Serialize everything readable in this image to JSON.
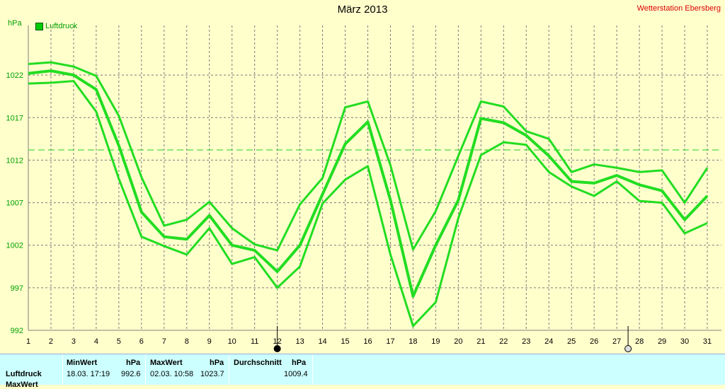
{
  "header": {
    "title": "März 2013",
    "station": "Wetterstation Ebersberg",
    "unit": "hPa",
    "legend_label": "Luftdruck"
  },
  "chart_data": {
    "type": "line",
    "title": "März 2013",
    "ylabel": "hPa",
    "xlabel": "",
    "ylim": [
      992,
      1027
    ],
    "yticks": [
      992,
      997,
      1002,
      1007,
      1012,
      1017,
      1022
    ],
    "xlim": [
      1,
      31
    ],
    "x": [
      1,
      2,
      3,
      4,
      5,
      6,
      7,
      8,
      9,
      10,
      11,
      12,
      13,
      14,
      15,
      16,
      17,
      18,
      19,
      20,
      21,
      22,
      23,
      24,
      25,
      26,
      27,
      28,
      29,
      30,
      31
    ],
    "grid": true,
    "legend_position": "top-left",
    "average_line": 1013.2,
    "line_color": "#22dd22",
    "series": [
      {
        "name": "Luftdruck",
        "role": "max",
        "values": [
          1023.3,
          1023.5,
          1023.0,
          1021.9,
          1017.2,
          1010.0,
          1004.3,
          1005.0,
          1007.1,
          1004.0,
          1002.1,
          1001.4,
          1006.8,
          1009.9,
          1018.2,
          1018.9,
          1011.4,
          1001.5,
          1006.0,
          1012.5,
          1018.9,
          1018.3,
          1015.4,
          1014.5,
          1010.6,
          1011.5,
          1011.1,
          1010.6,
          1010.8,
          1007.0,
          1011.1
        ]
      },
      {
        "name": "Luftdruck",
        "role": "mean",
        "values": [
          1022.2,
          1022.5,
          1022.0,
          1020.3,
          1013.7,
          1005.9,
          1003.0,
          1002.7,
          1005.5,
          1002.0,
          1001.4,
          998.9,
          1002.0,
          1008.0,
          1013.9,
          1016.5,
          1007.3,
          996.0,
          1002.0,
          1007.3,
          1016.9,
          1016.4,
          1014.9,
          1012.5,
          1009.5,
          1009.3,
          1010.2,
          1009.1,
          1008.4,
          1005.0,
          1007.8
        ]
      },
      {
        "name": "Luftdruck",
        "role": "min",
        "values": [
          1021.0,
          1021.1,
          1021.3,
          1017.7,
          1009.8,
          1003.0,
          1001.9,
          1000.9,
          1004.0,
          999.8,
          1000.6,
          997.0,
          999.5,
          1006.9,
          1009.7,
          1011.3,
          1000.9,
          992.5,
          995.3,
          1005.2,
          1012.6,
          1014.1,
          1013.8,
          1010.6,
          1008.9,
          1007.8,
          1009.5,
          1007.2,
          1007.0,
          1003.4,
          1004.6
        ]
      }
    ]
  },
  "markers": {
    "new_moon_day": 12,
    "full_moon_day": 28
  },
  "stats": {
    "row_label": "Luftdruck",
    "row2_label": "MaxWert",
    "min_header": "MinWert",
    "min_unit": "hPa",
    "min_datetime": "18.03.  17:19",
    "min_value": "992.6",
    "max_header": "MaxWert",
    "max_unit": "hPa",
    "max_datetime": "02.03.  10:58",
    "max_value": "1023.7",
    "avg_header": "Durchschnitt",
    "avg_unit": "hPa",
    "avg_value": "1009.4"
  }
}
